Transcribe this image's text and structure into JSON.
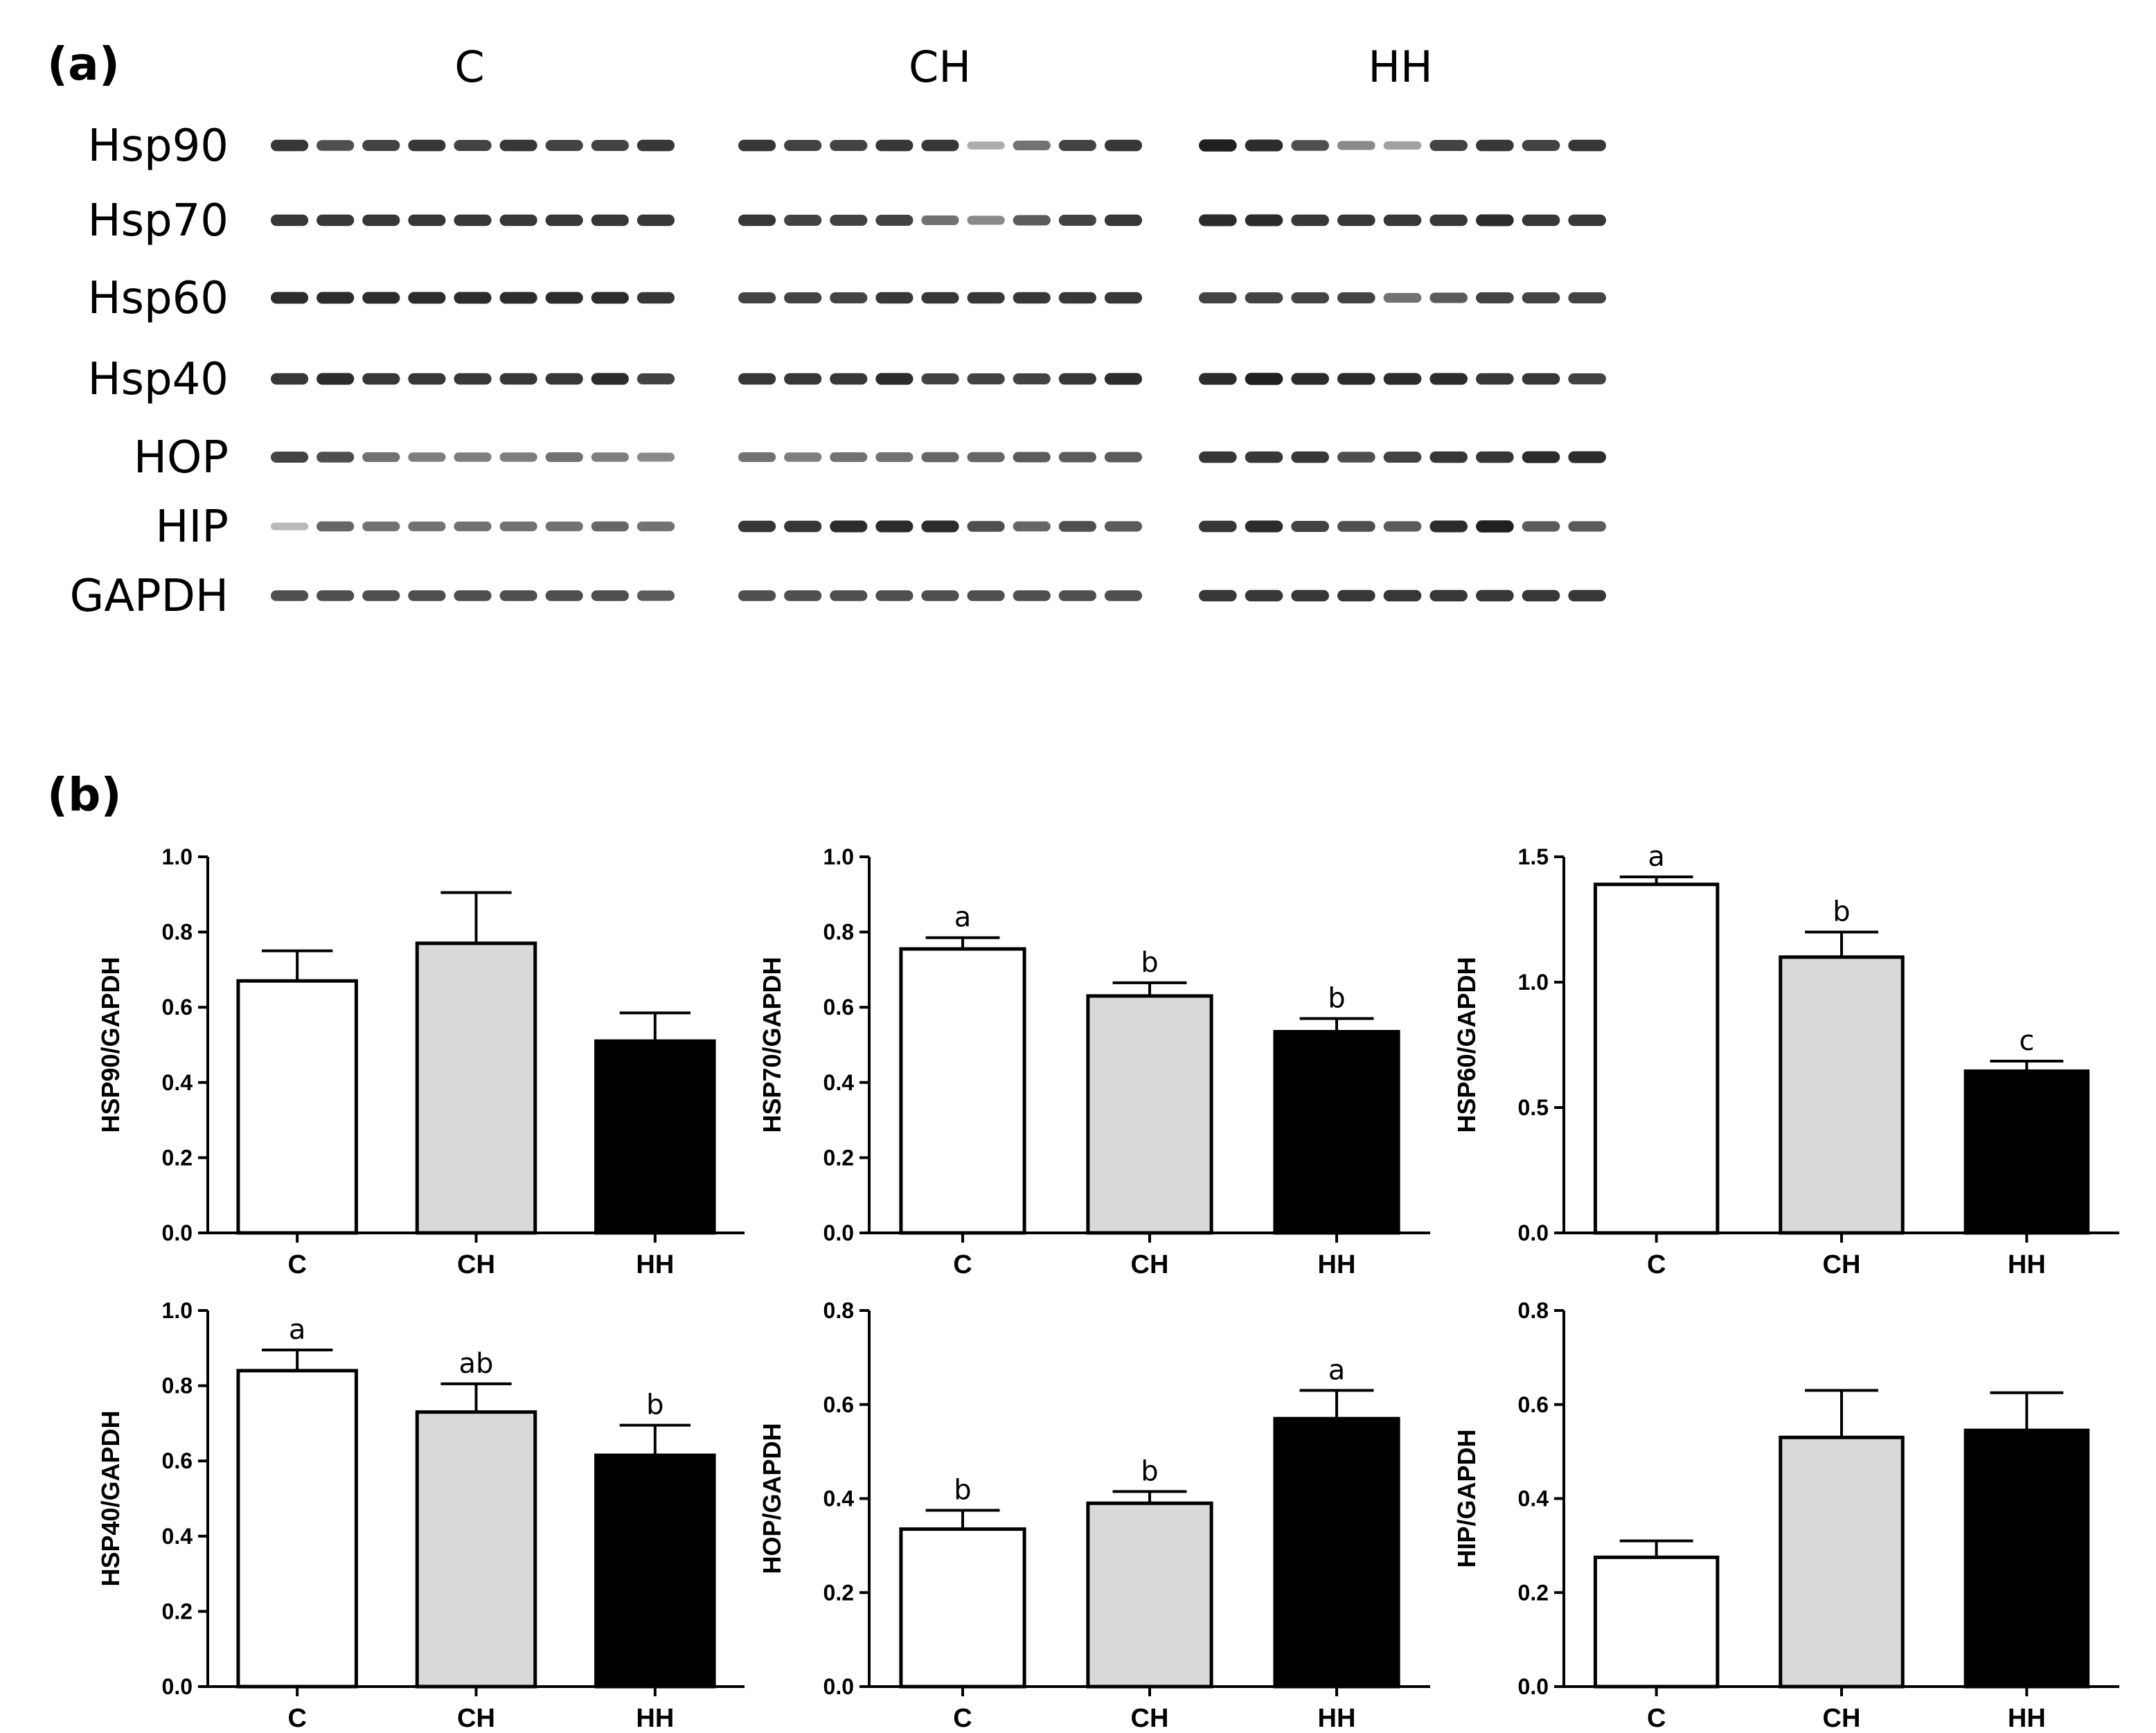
{
  "panel_a": {
    "label": "(a)",
    "groups": [
      "C",
      "CH",
      "HH"
    ],
    "rows": [
      {
        "protein": "Hsp90",
        "intensity": [
          [
            0.85,
            0.75,
            0.8,
            0.85,
            0.8,
            0.85,
            0.8,
            0.8,
            0.85
          ],
          [
            0.85,
            0.8,
            0.8,
            0.85,
            0.85,
            0.35,
            0.6,
            0.8,
            0.85
          ],
          [
            0.95,
            0.9,
            0.75,
            0.5,
            0.4,
            0.8,
            0.85,
            0.8,
            0.85
          ]
        ]
      },
      {
        "protein": "Hsp70",
        "intensity": [
          [
            0.85,
            0.85,
            0.85,
            0.85,
            0.85,
            0.85,
            0.85,
            0.85,
            0.85
          ],
          [
            0.85,
            0.8,
            0.8,
            0.8,
            0.6,
            0.5,
            0.7,
            0.8,
            0.85
          ],
          [
            0.9,
            0.9,
            0.85,
            0.85,
            0.85,
            0.85,
            0.9,
            0.85,
            0.85
          ]
        ]
      },
      {
        "protein": "Hsp60",
        "intensity": [
          [
            0.9,
            0.9,
            0.9,
            0.9,
            0.9,
            0.9,
            0.9,
            0.9,
            0.85
          ],
          [
            0.8,
            0.8,
            0.8,
            0.85,
            0.85,
            0.85,
            0.85,
            0.85,
            0.85
          ],
          [
            0.8,
            0.8,
            0.8,
            0.8,
            0.6,
            0.7,
            0.8,
            0.8,
            0.8
          ]
        ]
      },
      {
        "protein": "Hsp40",
        "intensity": [
          [
            0.85,
            0.9,
            0.85,
            0.85,
            0.85,
            0.85,
            0.85,
            0.9,
            0.8
          ],
          [
            0.85,
            0.85,
            0.85,
            0.9,
            0.8,
            0.8,
            0.8,
            0.85,
            0.9
          ],
          [
            0.9,
            0.95,
            0.9,
            0.9,
            0.9,
            0.9,
            0.85,
            0.85,
            0.8
          ]
        ]
      },
      {
        "protein": "HOP",
        "intensity": [
          [
            0.8,
            0.75,
            0.6,
            0.55,
            0.55,
            0.55,
            0.6,
            0.55,
            0.5
          ],
          [
            0.6,
            0.55,
            0.6,
            0.6,
            0.65,
            0.65,
            0.7,
            0.7,
            0.7
          ],
          [
            0.85,
            0.85,
            0.85,
            0.75,
            0.8,
            0.85,
            0.85,
            0.9,
            0.9
          ]
        ]
      },
      {
        "protein": "HIP",
        "intensity": [
          [
            0.3,
            0.65,
            0.6,
            0.6,
            0.6,
            0.6,
            0.6,
            0.65,
            0.6
          ],
          [
            0.85,
            0.85,
            0.9,
            0.9,
            0.9,
            0.75,
            0.65,
            0.75,
            0.7
          ],
          [
            0.85,
            0.9,
            0.8,
            0.75,
            0.7,
            0.9,
            0.95,
            0.7,
            0.7
          ]
        ]
      },
      {
        "protein": "GAPDH",
        "intensity": [
          [
            0.75,
            0.75,
            0.75,
            0.75,
            0.75,
            0.75,
            0.75,
            0.75,
            0.7
          ],
          [
            0.75,
            0.75,
            0.75,
            0.75,
            0.75,
            0.75,
            0.75,
            0.75,
            0.75
          ],
          [
            0.85,
            0.85,
            0.85,
            0.85,
            0.85,
            0.85,
            0.85,
            0.85,
            0.85
          ]
        ]
      }
    ]
  },
  "panel_b": {
    "label": "(b)"
  },
  "chart_data": [
    {
      "type": "bar",
      "title": "",
      "ylabel": "HSP90/GAPDH",
      "categories": [
        "C",
        "CH",
        "HH"
      ],
      "values": [
        0.67,
        0.77,
        0.51
      ],
      "errors": [
        0.08,
        0.135,
        0.075
      ],
      "sig_letters": [
        "",
        "",
        ""
      ],
      "ylim": [
        0,
        1.0
      ],
      "yticks": [
        "0.0",
        "0.2",
        "0.4",
        "0.6",
        "0.8",
        "1.0"
      ],
      "bar_colors": [
        "#ffffff",
        "#d9d9d9",
        "#000000"
      ]
    },
    {
      "type": "bar",
      "title": "",
      "ylabel": "HSP70/GAPDH",
      "categories": [
        "C",
        "CH",
        "HH"
      ],
      "values": [
        0.755,
        0.63,
        0.535
      ],
      "errors": [
        0.03,
        0.035,
        0.035
      ],
      "sig_letters": [
        "a",
        "b",
        "b"
      ],
      "ylim": [
        0,
        1.0
      ],
      "yticks": [
        "0.0",
        "0.2",
        "0.4",
        "0.6",
        "0.8",
        "1.0"
      ],
      "bar_colors": [
        "#ffffff",
        "#d9d9d9",
        "#000000"
      ]
    },
    {
      "type": "bar",
      "title": "",
      "ylabel": "HSP60/GAPDH",
      "categories": [
        "C",
        "CH",
        "HH"
      ],
      "values": [
        1.39,
        1.1,
        0.645
      ],
      "errors": [
        0.03,
        0.1,
        0.04
      ],
      "sig_letters": [
        "a",
        "b",
        "c"
      ],
      "ylim": [
        0,
        1.5
      ],
      "yticks": [
        "0.0",
        "0.5",
        "1.0",
        "1.5"
      ],
      "bar_colors": [
        "#ffffff",
        "#d9d9d9",
        "#000000"
      ]
    },
    {
      "type": "bar",
      "title": "",
      "ylabel": "HSP40/GAPDH",
      "categories": [
        "C",
        "CH",
        "HH"
      ],
      "values": [
        0.84,
        0.73,
        0.615
      ],
      "errors": [
        0.055,
        0.075,
        0.08
      ],
      "sig_letters": [
        "a",
        "ab",
        "b"
      ],
      "ylim": [
        0,
        1.0
      ],
      "yticks": [
        "0.0",
        "0.2",
        "0.4",
        "0.6",
        "0.8",
        "1.0"
      ],
      "bar_colors": [
        "#ffffff",
        "#d9d9d9",
        "#000000"
      ]
    },
    {
      "type": "bar",
      "title": "",
      "ylabel": "HOP/GAPDH",
      "categories": [
        "C",
        "CH",
        "HH"
      ],
      "values": [
        0.335,
        0.39,
        0.57
      ],
      "errors": [
        0.04,
        0.025,
        0.06
      ],
      "sig_letters": [
        "b",
        "b",
        "a"
      ],
      "ylim": [
        0,
        0.8
      ],
      "yticks": [
        "0.0",
        "0.2",
        "0.4",
        "0.6",
        "0.8"
      ],
      "bar_colors": [
        "#ffffff",
        "#d9d9d9",
        "#000000"
      ]
    },
    {
      "type": "bar",
      "title": "",
      "ylabel": "HIP/GAPDH",
      "categories": [
        "C",
        "CH",
        "HH"
      ],
      "values": [
        0.275,
        0.53,
        0.545
      ],
      "errors": [
        0.035,
        0.1,
        0.08
      ],
      "sig_letters": [
        "",
        "",
        ""
      ],
      "ylim": [
        0,
        0.8
      ],
      "yticks": [
        "0.0",
        "0.2",
        "0.4",
        "0.6",
        "0.8"
      ],
      "bar_colors": [
        "#ffffff",
        "#d9d9d9",
        "#000000"
      ]
    }
  ]
}
